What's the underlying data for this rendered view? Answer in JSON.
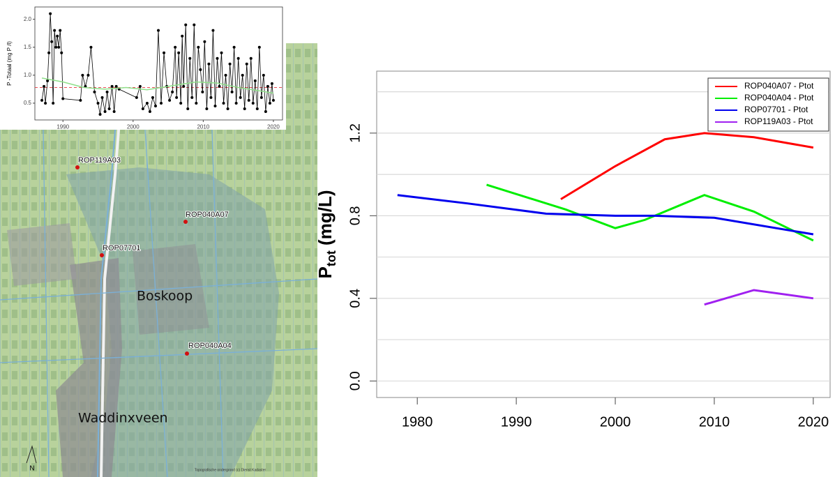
{
  "chart_data": [
    {
      "type": "line",
      "ylabel": "P -Totaal (mg P /l)",
      "xlim": [
        1986,
        2021.3
      ],
      "xticks": [
        1990,
        2000,
        2010,
        2020
      ],
      "ylim": [
        0.2,
        2.22
      ],
      "yticks": [
        0.5,
        {
          "value": 1.0,
          "label": "1.0"
        },
        1.5,
        {
          "value": 2.0,
          "label": "2.0"
        }
      ],
      "grid": false,
      "markers": true,
      "hlines": [
        {
          "value": 0.78,
          "color": "#e8323c",
          "dash": true
        }
      ],
      "series": [
        {
          "color": "#000000",
          "markers": true,
          "x": [
            1987.0,
            1987.3,
            1987.5,
            1987.8,
            1988.0,
            1988.2,
            1988.4,
            1988.6,
            1988.8,
            1989.0,
            1989.2,
            1989.4,
            1989.6,
            1989.8,
            1990.0,
            1992.5,
            1992.8,
            1993.2,
            1993.6,
            1994.0,
            1994.5,
            1995.0,
            1995.3,
            1995.6,
            1996.0,
            1996.3,
            1996.6,
            1997.0,
            1997.3,
            1997.6,
            1998.0,
            2000.5,
            2001.0,
            2001.4,
            2002.0,
            2002.4,
            2002.8,
            2003.2,
            2003.6,
            2004.0,
            2004.4,
            2004.8,
            2005.2,
            2005.6,
            2006.0,
            2006.2,
            2006.5,
            2006.8,
            2007.0,
            2007.2,
            2007.5,
            2007.8,
            2008.1,
            2008.4,
            2008.7,
            2009.0,
            2009.3,
            2009.6,
            2009.9,
            2010.2,
            2010.5,
            2010.8,
            2011.1,
            2011.4,
            2011.7,
            2012.0,
            2012.3,
            2012.6,
            2012.9,
            2013.2,
            2013.5,
            2013.8,
            2014.1,
            2014.4,
            2014.7,
            2015.0,
            2015.3,
            2015.6,
            2015.9,
            2016.2,
            2016.5,
            2016.8,
            2017.1,
            2017.4,
            2017.7,
            2018.0,
            2018.3,
            2018.6,
            2018.9,
            2019.2,
            2019.5,
            2019.8,
            2020.0
          ],
          "values": [
            0.55,
            0.8,
            0.5,
            0.9,
            1.4,
            2.1,
            1.6,
            0.5,
            1.8,
            1.5,
            1.7,
            1.5,
            1.8,
            1.4,
            0.58,
            0.55,
            1.0,
            0.8,
            1.0,
            1.5,
            0.7,
            0.5,
            0.3,
            0.6,
            0.35,
            0.7,
            0.4,
            0.8,
            0.35,
            0.8,
            0.75,
            0.6,
            0.8,
            0.4,
            0.5,
            0.35,
            0.6,
            0.45,
            1.8,
            0.5,
            1.4,
            0.8,
            0.55,
            0.7,
            1.5,
            0.6,
            1.4,
            0.5,
            1.7,
            0.8,
            1.9,
            0.4,
            1.3,
            0.6,
            1.9,
            0.5,
            1.5,
            1.1,
            0.7,
            1.6,
            0.4,
            1.2,
            0.6,
            1.8,
            0.45,
            1.3,
            0.8,
            1.4,
            0.5,
            1.0,
            0.4,
            1.2,
            0.7,
            1.5,
            0.5,
            1.3,
            0.6,
            1.0,
            0.4,
            1.2,
            0.55,
            1.3,
            0.5,
            0.9,
            0.4,
            1.5,
            0.6,
            1.0,
            0.35,
            0.8,
            0.5,
            0.85,
            0.55
          ]
        },
        {
          "color": "#8fe08a",
          "markers": false,
          "x": [
            1987,
            1990,
            1993,
            1996,
            1999,
            2002,
            2005,
            2009,
            2012,
            2015,
            2018,
            2020
          ],
          "values": [
            0.95,
            0.88,
            0.78,
            0.75,
            0.78,
            0.74,
            0.8,
            0.88,
            0.86,
            0.78,
            0.72,
            0.68
          ]
        }
      ]
    },
    {
      "type": "line",
      "ylabel": "P",
      "ylabel_sub": "tot",
      "ylabel_unit": "(mg/L)",
      "xlim": [
        1975.9,
        2021.7
      ],
      "xticks": [
        1980,
        1990,
        2000,
        2010,
        2020
      ],
      "ylim": [
        -0.08,
        1.5
      ],
      "yticks": [
        {
          "value": 0,
          "label": "0.0"
        },
        0.4,
        0.8,
        1.2
      ],
      "grid": true,
      "ygrid": [
        0,
        0.2,
        0.4,
        0.6,
        0.8,
        1.0,
        1.2,
        1.4
      ],
      "legend": "top-right",
      "series": [
        {
          "name": "ROP040A07 - Ptot",
          "color": "#ff0000",
          "x": [
            1994.5,
            2000,
            2005,
            2009,
            2014,
            2020
          ],
          "values": [
            0.88,
            1.04,
            1.17,
            1.2,
            1.18,
            1.13
          ]
        },
        {
          "name": "ROP040A04 - Ptot",
          "color": "#00ee00",
          "x": [
            1987,
            1995,
            2000,
            2003,
            2007,
            2009,
            2014,
            2020
          ],
          "values": [
            0.95,
            0.83,
            0.74,
            0.78,
            0.86,
            0.9,
            0.82,
            0.68
          ]
        },
        {
          "name": "ROP07701 - Ptot",
          "color": "#0000ee",
          "x": [
            1978,
            1985,
            1993,
            2000,
            2004,
            2010,
            2020
          ],
          "values": [
            0.9,
            0.86,
            0.81,
            0.8,
            0.8,
            0.79,
            0.71
          ]
        },
        {
          "name": "ROP119A03 - Ptot",
          "color": "#a020f0",
          "x": [
            2009,
            2014,
            2020
          ],
          "values": [
            0.37,
            0.44,
            0.4
          ]
        }
      ]
    }
  ],
  "map": {
    "stations": [
      "ROP119A03",
      "ROP040A07",
      "ROP07701",
      "ROP040A04"
    ],
    "places": [
      "Boskoop",
      "Waddinxveen"
    ],
    "north": "N",
    "credit": "Topografische ondergrond (c) Dienst Kadaster"
  }
}
